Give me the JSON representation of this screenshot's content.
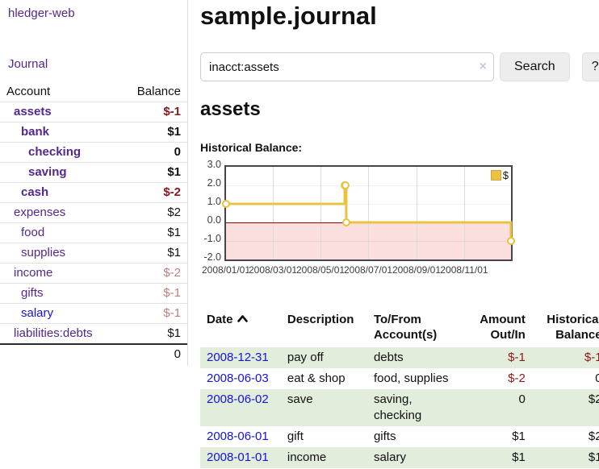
{
  "app": {
    "brand": "hledger-web",
    "nav_journal": "Journal"
  },
  "sidebar": {
    "headers": {
      "account": "Account",
      "balance": "Balance"
    },
    "rows": [
      {
        "name": "assets",
        "depth": 0,
        "bold": true,
        "balance": "$-1",
        "neg": true,
        "blue": false
      },
      {
        "name": "bank",
        "depth": 1,
        "bold": true,
        "balance": "$1",
        "neg": false,
        "blue": false
      },
      {
        "name": "checking",
        "depth": 2,
        "bold": true,
        "balance": "0",
        "neg": false,
        "blue": false
      },
      {
        "name": "saving",
        "depth": 2,
        "bold": true,
        "balance": "$1",
        "neg": false,
        "blue": false
      },
      {
        "name": "cash",
        "depth": 1,
        "bold": true,
        "balance": "$-2",
        "neg": true,
        "blue": false
      },
      {
        "name": "expenses",
        "depth": 0,
        "bold": false,
        "balance": "$2",
        "neg": false,
        "blue": false
      },
      {
        "name": "food",
        "depth": 1,
        "bold": false,
        "balance": "$1",
        "neg": false,
        "blue": false
      },
      {
        "name": "supplies",
        "depth": 1,
        "bold": false,
        "balance": "$1",
        "neg": false,
        "blue": false
      },
      {
        "name": "income",
        "depth": 0,
        "bold": false,
        "balance": "$-2",
        "neg": true,
        "blue": false
      },
      {
        "name": "gifts",
        "depth": 1,
        "bold": false,
        "balance": "$-1",
        "neg": true,
        "blue": false
      },
      {
        "name": "salary",
        "depth": 1,
        "bold": false,
        "balance": "$-1",
        "neg": true,
        "blue": true
      },
      {
        "name": "liabilities:debts",
        "depth": 0,
        "bold": false,
        "balance": "$1",
        "neg": false,
        "blue": false
      }
    ],
    "total": "0"
  },
  "main": {
    "title": "sample.journal",
    "search": {
      "value": "inacct:assets",
      "clear_icon": "×",
      "button_label": "Search",
      "help_label": "?"
    },
    "account_heading": "assets",
    "chart_heading": "Historical Balance:"
  },
  "chart_data": {
    "type": "line",
    "title": "Historical Balance:",
    "step": true,
    "series": [
      {
        "name": "$",
        "points": [
          [
            "2008-01-01",
            1
          ],
          [
            "2008-06-01",
            2
          ],
          [
            "2008-06-02",
            2
          ],
          [
            "2008-06-03",
            0
          ],
          [
            "2008-12-31",
            -1
          ]
        ]
      }
    ],
    "x_range": [
      "2008-01-01",
      "2008-12-31"
    ],
    "x_ticks": [
      "2008/01/01",
      "2008/03/01",
      "2008/05/01",
      "2008/07/01",
      "2008/09/01",
      "2008/11/01"
    ],
    "y_ticks": [
      3.0,
      2.0,
      1.0,
      0.0,
      -1.0,
      -2.0
    ],
    "ylim": [
      -2,
      3
    ],
    "legend": {
      "label": "$",
      "position": "top-right"
    },
    "line_color": "#e8c240",
    "negative_region_color": "#fbdede",
    "zero_line_color": "#990000"
  },
  "register": {
    "headers": {
      "date": "Date",
      "description": "Description",
      "accounts": "To/From Account(s)",
      "amount": "Amount Out/In",
      "balance": "Historical Balance"
    },
    "rows": [
      {
        "date": "2008-12-31",
        "description": "pay off",
        "accounts": "debts",
        "amount": "$-1",
        "amount_neg": true,
        "balance": "$-1",
        "balance_neg": true
      },
      {
        "date": "2008-06-03",
        "description": "eat & shop",
        "accounts": "food, supplies",
        "amount": "$-2",
        "amount_neg": true,
        "balance": "0",
        "balance_neg": false
      },
      {
        "date": "2008-06-02",
        "description": "save",
        "accounts": "saving, checking",
        "amount": "0",
        "amount_neg": false,
        "balance": "$2",
        "balance_neg": false
      },
      {
        "date": "2008-06-01",
        "description": "gift",
        "accounts": "gifts",
        "amount": "$1",
        "amount_neg": false,
        "balance": "$2",
        "balance_neg": false
      },
      {
        "date": "2008-01-01",
        "description": "income",
        "accounts": "salary",
        "amount": "$1",
        "amount_neg": false,
        "balance": "$1",
        "balance_neg": false
      }
    ]
  }
}
